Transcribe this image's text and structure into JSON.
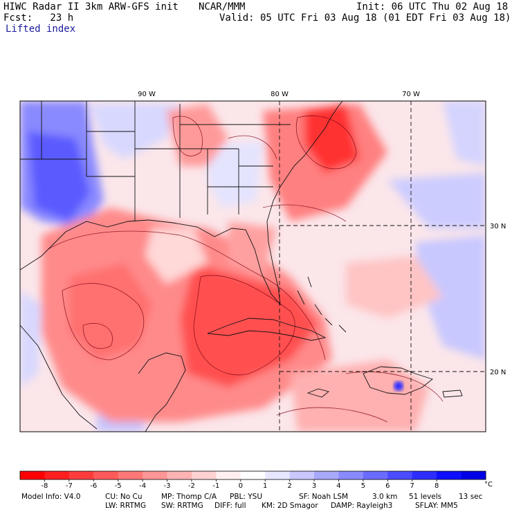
{
  "header": {
    "model": "HIWC Radar II 3km ARW-GFS init",
    "org": "NCAR/MMM",
    "init": "Init: 06 UTC Thu 02 Aug 18",
    "fcst": "Fcst:   23 h",
    "valid": "Valid: 05 UTC Fri 03 Aug 18 (01 EDT Fri 03 Aug 18)",
    "field": "Lifted index"
  },
  "map": {
    "lon_labels": [
      "90 W",
      "80 W",
      "70 W"
    ],
    "lat_labels": [
      "30 N",
      "20 N"
    ]
  },
  "colorbar": {
    "unit": "°C",
    "ticks": [
      "-8",
      "-7",
      "-6",
      "-5",
      "-4",
      "-3",
      "-2",
      "-1",
      "0",
      "1",
      "2",
      "3",
      "4",
      "5",
      "6",
      "7",
      "8"
    ],
    "colors": [
      "#ff0000",
      "#ff1f1f",
      "#ff3c3c",
      "#ff5a5a",
      "#ff7777",
      "#ff9595",
      "#ffb3b3",
      "#ffd2d2",
      "#fff0f0",
      "#ffffff",
      "#e6e6ff",
      "#c8c8ff",
      "#a8a8ff",
      "#8a8aff",
      "#6b6bff",
      "#4b4bff",
      "#2d2dff",
      "#0f0fff",
      "#0000e6"
    ]
  },
  "model_info": {
    "line1": {
      "model": "Model Info: V4.0",
      "cu": "CU: No Cu",
      "mp": "MP: Thomp C/A",
      "pbl": "PBL: YSU",
      "sf": "SF: Noah LSM",
      "res": "3.0 km",
      "levels": "51 levels",
      "dt": "13 sec"
    },
    "line2": {
      "lw": "LW: RRTMG",
      "sw": "SW: RRTMG",
      "diff": "DIFF: full",
      "km": "KM: 2D Smagor",
      "damp": "DAMP: Rayleigh3",
      "sflay": "SFLAY: MM5"
    }
  }
}
